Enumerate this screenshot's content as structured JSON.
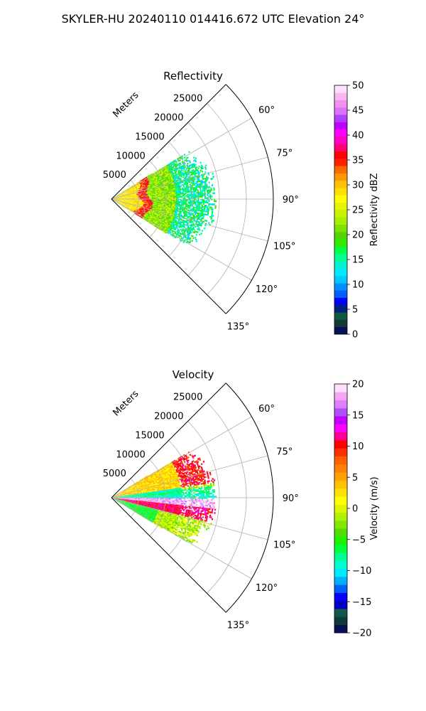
{
  "figure": {
    "title": "SKYLER-HU  20240110  014416.672 UTC Elevation 24°"
  },
  "chart_data": [
    {
      "type": "heatmap",
      "subtype": "polar-sector (radar PPI)",
      "title": "Reflectivity",
      "range_axis_label": "Meters",
      "range_ticks": [
        "5000",
        "10000",
        "15000",
        "20000",
        "25000"
      ],
      "range_max": 30000,
      "azimuth_range_deg": [
        45,
        135
      ],
      "azimuth_ticks": [
        "60°",
        "75°",
        "90°",
        "105°",
        "120°",
        "135°"
      ],
      "grid": true,
      "colorbar": {
        "label": "Reflectivity dBZ",
        "min": 0,
        "max": 50,
        "ticks": [
          "0",
          "5",
          "10",
          "15",
          "20",
          "25",
          "30",
          "35",
          "40",
          "45",
          "50"
        ],
        "colors": [
          "#0a0f5a",
          "#123a3a",
          "#0f5a3a",
          "#00207a",
          "#0000ff",
          "#0060ff",
          "#0090ff",
          "#00c8ff",
          "#00e8ff",
          "#00f0d0",
          "#00ff90",
          "#00ff40",
          "#30e800",
          "#55d400",
          "#80e000",
          "#a8f000",
          "#c8f000",
          "#e8f500",
          "#ffff00",
          "#ffe000",
          "#ffc000",
          "#ff9800",
          "#ff6800",
          "#ff2000",
          "#ff0000",
          "#ff0070",
          "#ff00c0",
          "#ff00ff",
          "#c000ff",
          "#b040ff",
          "#e070ff",
          "#f090f0",
          "#f8b8f0",
          "#ffe0ff"
        ]
      },
      "field": {
        "core_range": [
          0,
          5500
        ],
        "core_value": 28,
        "ring_range": [
          5500,
          7500
        ],
        "ring_value": 35,
        "mid_range": [
          7500,
          13000
        ],
        "mid_value": 22,
        "outer_range": [
          13000,
          19000
        ],
        "outer_value": 15,
        "az_extent_deg": [
          58,
          122
        ]
      }
    },
    {
      "type": "heatmap",
      "subtype": "polar-sector (radar PPI)",
      "title": "Velocity",
      "range_axis_label": "Meters",
      "range_ticks": [
        "5000",
        "10000",
        "15000",
        "20000",
        "25000"
      ],
      "range_max": 30000,
      "azimuth_range_deg": [
        45,
        135
      ],
      "azimuth_ticks": [
        "60°",
        "75°",
        "90°",
        "105°",
        "120°",
        "135°"
      ],
      "grid": true,
      "colorbar": {
        "label": "Velocity (m/s)",
        "min": -20,
        "max": 20,
        "ticks": [
          "−20",
          "−15",
          "−10",
          "−5",
          "0",
          "5",
          "10",
          "15",
          "20"
        ],
        "colors": [
          "#0a0f5a",
          "#0f3a3a",
          "#0f5a4a",
          "#0000c0",
          "#0000ff",
          "#0060ff",
          "#00b0ff",
          "#00e8ff",
          "#00ffd0",
          "#00ff90",
          "#00ff40",
          "#20f000",
          "#50e000",
          "#80e800",
          "#b0f000",
          "#e0f500",
          "#ffff00",
          "#ffe000",
          "#ffc000",
          "#ffa000",
          "#ff8000",
          "#ff6000",
          "#ff3000",
          "#ff0000",
          "#ff0090",
          "#ff00ff",
          "#c000ff",
          "#b050ff",
          "#e080ff",
          "#f0a8f0",
          "#ffe0ff"
        ]
      },
      "field": {
        "upper_value": 2,
        "upper_edge_value": 10,
        "near_90_value": -10,
        "just_below_90_value": 18,
        "lower_red_value": 10,
        "lower_far_value": -5
      }
    }
  ]
}
